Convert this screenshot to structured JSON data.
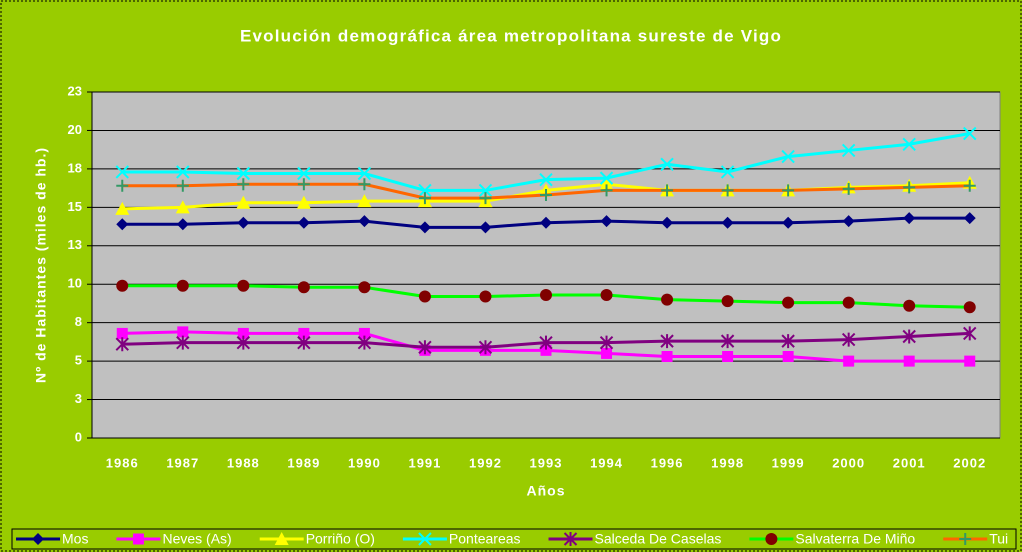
{
  "chart_data": {
    "type": "line",
    "title": "Evolución demográfica área metropolitana sureste de Vigo",
    "x_label": "Años",
    "y_label": "Nº de Habitantes (miles de hb.)",
    "categories": [
      "1986",
      "1987",
      "1988",
      "1989",
      "1990",
      "1991",
      "1992",
      "1993",
      "1994",
      "1996",
      "1998",
      "1999",
      "2000",
      "2001",
      "2002"
    ],
    "ylim": [
      0,
      22.5
    ],
    "yticks": [
      0,
      {
        "value": 2.5,
        "label": "3"
      },
      5,
      {
        "value": 7.5,
        "label": "8"
      },
      10,
      {
        "value": 12.5,
        "label": "13"
      },
      15,
      {
        "value": 17.5,
        "label": "18"
      },
      20,
      {
        "value": 22.5,
        "label": "23"
      }
    ],
    "grid": true,
    "legend": "bottom",
    "series": [
      {
        "name": "Mos",
        "color": "#000080",
        "marker": "diamond",
        "marker_color": "#000080",
        "values": [
          13.9,
          13.9,
          14.0,
          14.0,
          14.1,
          13.7,
          13.7,
          14.0,
          14.1,
          14.0,
          14.0,
          14.0,
          14.1,
          14.3,
          14.3
        ]
      },
      {
        "name": "Neves (As)",
        "color": "#ff00ff",
        "marker": "square",
        "marker_color": "#ff00ff",
        "values": [
          6.8,
          6.9,
          6.8,
          6.8,
          6.8,
          5.7,
          5.7,
          5.7,
          5.5,
          5.3,
          5.3,
          5.3,
          5.0,
          5.0,
          5.0
        ]
      },
      {
        "name": "Porriño (O)",
        "color": "#ffff00",
        "marker": "triangle",
        "marker_color": "#ffff00",
        "values": [
          14.9,
          15.0,
          15.3,
          15.3,
          15.4,
          15.4,
          15.4,
          16.1,
          16.5,
          16.1,
          16.1,
          16.1,
          16.3,
          16.4,
          16.6
        ]
      },
      {
        "name": "Ponteareas",
        "color": "#00ffff",
        "marker": "x",
        "marker_color": "#00ffff",
        "values": [
          17.3,
          17.3,
          17.2,
          17.2,
          17.2,
          16.1,
          16.1,
          16.8,
          16.9,
          17.8,
          17.3,
          18.3,
          18.7,
          19.1,
          19.8
        ]
      },
      {
        "name": "Salceda De Caselas",
        "color": "#800080",
        "marker": "star",
        "marker_color": "#800080",
        "values": [
          6.1,
          6.2,
          6.2,
          6.2,
          6.2,
          5.9,
          5.9,
          6.2,
          6.2,
          6.3,
          6.3,
          6.3,
          6.4,
          6.6,
          6.8
        ]
      },
      {
        "name": "Salvaterra De Miño",
        "color": "#00ff00",
        "marker": "circle",
        "marker_color": "#800000",
        "values": [
          9.9,
          9.9,
          9.9,
          9.8,
          9.8,
          9.2,
          9.2,
          9.3,
          9.3,
          9.0,
          8.9,
          8.8,
          8.8,
          8.6,
          8.5
        ]
      },
      {
        "name": "Tui",
        "color": "#ff6600",
        "marker": "plus",
        "marker_color": "#339966",
        "values": [
          16.4,
          16.4,
          16.5,
          16.5,
          16.5,
          15.6,
          15.6,
          15.8,
          16.1,
          16.1,
          16.1,
          16.1,
          16.2,
          16.3,
          16.4
        ]
      }
    ]
  }
}
